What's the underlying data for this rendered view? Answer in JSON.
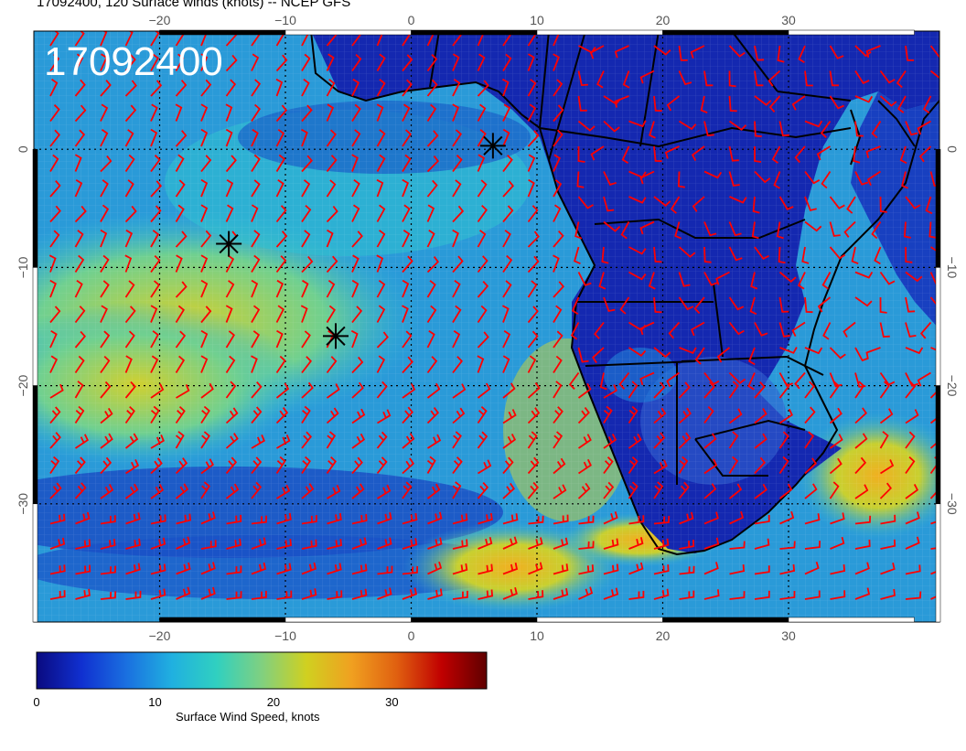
{
  "title": "17092400, 120 Surface winds (knots) -- NCEP GFS",
  "timestamp_label": "17092400",
  "map": {
    "lon_range": [
      -30,
      42
    ],
    "lat_range": [
      -40,
      10
    ],
    "lon_ticks": [
      "−20",
      "−10",
      "0",
      "10",
      "20",
      "30"
    ],
    "lon_tick_values": [
      -20,
      -10,
      0,
      10,
      20,
      30
    ],
    "lat_ticks": [
      "0",
      "−10",
      "−20",
      "−30"
    ],
    "lat_tick_values": [
      0,
      -10,
      -20,
      -30
    ],
    "barb_color": "#ff0000",
    "markers": [
      {
        "lon": -14.5,
        "lat": -8.0
      },
      {
        "lon": -6.0,
        "lat": -15.8
      },
      {
        "lon": 6.5,
        "lat": 0.3
      }
    ]
  },
  "colorbar": {
    "label": "Surface Wind Speed, knots",
    "ticks": [
      "0",
      "10",
      "20",
      "30"
    ],
    "tick_values": [
      0,
      10,
      20,
      30
    ],
    "range": [
      0,
      38
    ],
    "colors": [
      "#0a0a80",
      "#1030d0",
      "#1a70e0",
      "#20b0e0",
      "#30d0c0",
      "#80d080",
      "#d0d020",
      "#f0a020",
      "#e06010",
      "#c00000",
      "#600000"
    ]
  }
}
